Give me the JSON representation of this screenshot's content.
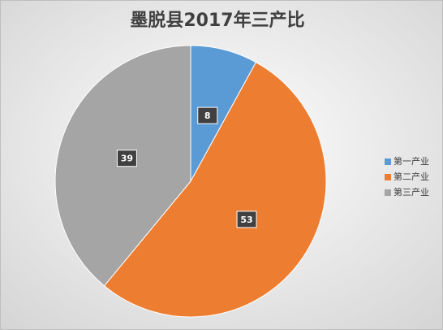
{
  "chart_data": {
    "type": "pie",
    "title": "墨脱县2017年三产比",
    "categories": [
      "第一产业",
      "第二产业",
      "第三产业"
    ],
    "values": [
      8,
      53,
      39
    ],
    "colors": [
      "#5b9bd5",
      "#ed7d31",
      "#a5a5a5"
    ],
    "legend": "right"
  }
}
